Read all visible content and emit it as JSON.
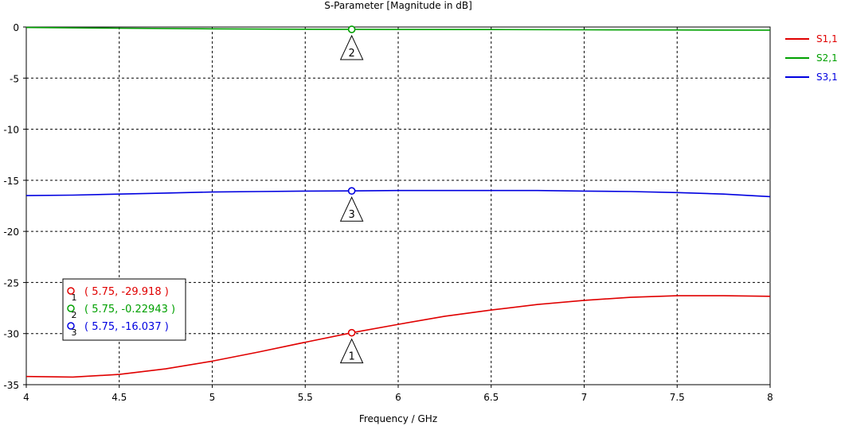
{
  "chart_data": {
    "type": "line",
    "title": "S-Parameter [Magnitude in dB]",
    "xlabel": "Frequency / GHz",
    "ylabel": "",
    "xlim": [
      4,
      8
    ],
    "ylim": [
      -35,
      0
    ],
    "grid": true,
    "legend_position": "right",
    "x_ticks": [
      4,
      4.5,
      5,
      5.5,
      6,
      6.5,
      7,
      7.5,
      8
    ],
    "x_tick_labels": [
      "4",
      "4.5",
      "5",
      "5.5",
      "6",
      "6.5",
      "7",
      "7.5",
      "8"
    ],
    "y_ticks": [
      0,
      -5,
      -10,
      -15,
      -20,
      -25,
      -30,
      -35
    ],
    "y_tick_labels": [
      "0",
      "-5",
      "-10",
      "-15",
      "-20",
      "-25",
      "-30",
      "-35"
    ],
    "series": [
      {
        "name": "S1,1",
        "color": "#e00000",
        "x": [
          4,
          4.25,
          4.5,
          4.75,
          5,
          5.25,
          5.5,
          5.75,
          6,
          6.25,
          6.5,
          6.75,
          7,
          7.25,
          7.5,
          7.75,
          8
        ],
        "y": [
          -34.2,
          -34.25,
          -34.0,
          -33.45,
          -32.7,
          -31.8,
          -30.85,
          -29.918,
          -29.1,
          -28.3,
          -27.7,
          -27.15,
          -26.75,
          -26.45,
          -26.3,
          -26.3,
          -26.35
        ]
      },
      {
        "name": "S2,1",
        "color": "#00a000",
        "x": [
          4,
          4.5,
          5,
          5.5,
          5.75,
          6,
          6.5,
          7,
          7.5,
          8
        ],
        "y": [
          -0.05,
          -0.12,
          -0.18,
          -0.22,
          -0.22943,
          -0.24,
          -0.25,
          -0.27,
          -0.29,
          -0.3
        ]
      },
      {
        "name": "S3,1",
        "color": "#0000e0",
        "x": [
          4,
          4.25,
          4.5,
          4.75,
          5,
          5.25,
          5.5,
          5.75,
          6,
          6.25,
          6.5,
          6.75,
          7,
          7.25,
          7.5,
          7.75,
          8
        ],
        "y": [
          -16.5,
          -16.45,
          -16.35,
          -16.25,
          -16.15,
          -16.1,
          -16.05,
          -16.037,
          -16.0,
          -16.0,
          -16.0,
          -16.0,
          -16.05,
          -16.1,
          -16.2,
          -16.35,
          -16.6
        ]
      }
    ],
    "markers": [
      {
        "id": "1",
        "x": 5.75,
        "y": -29.918,
        "color": "#e00000",
        "readout": "( 5.75, -29.918 )"
      },
      {
        "id": "2",
        "x": 5.75,
        "y": -0.22943,
        "color": "#00a000",
        "readout": "( 5.75, -0.22943 )"
      },
      {
        "id": "3",
        "x": 5.75,
        "y": -16.037,
        "color": "#0000e0",
        "readout": "( 5.75, -16.037 )"
      }
    ]
  }
}
